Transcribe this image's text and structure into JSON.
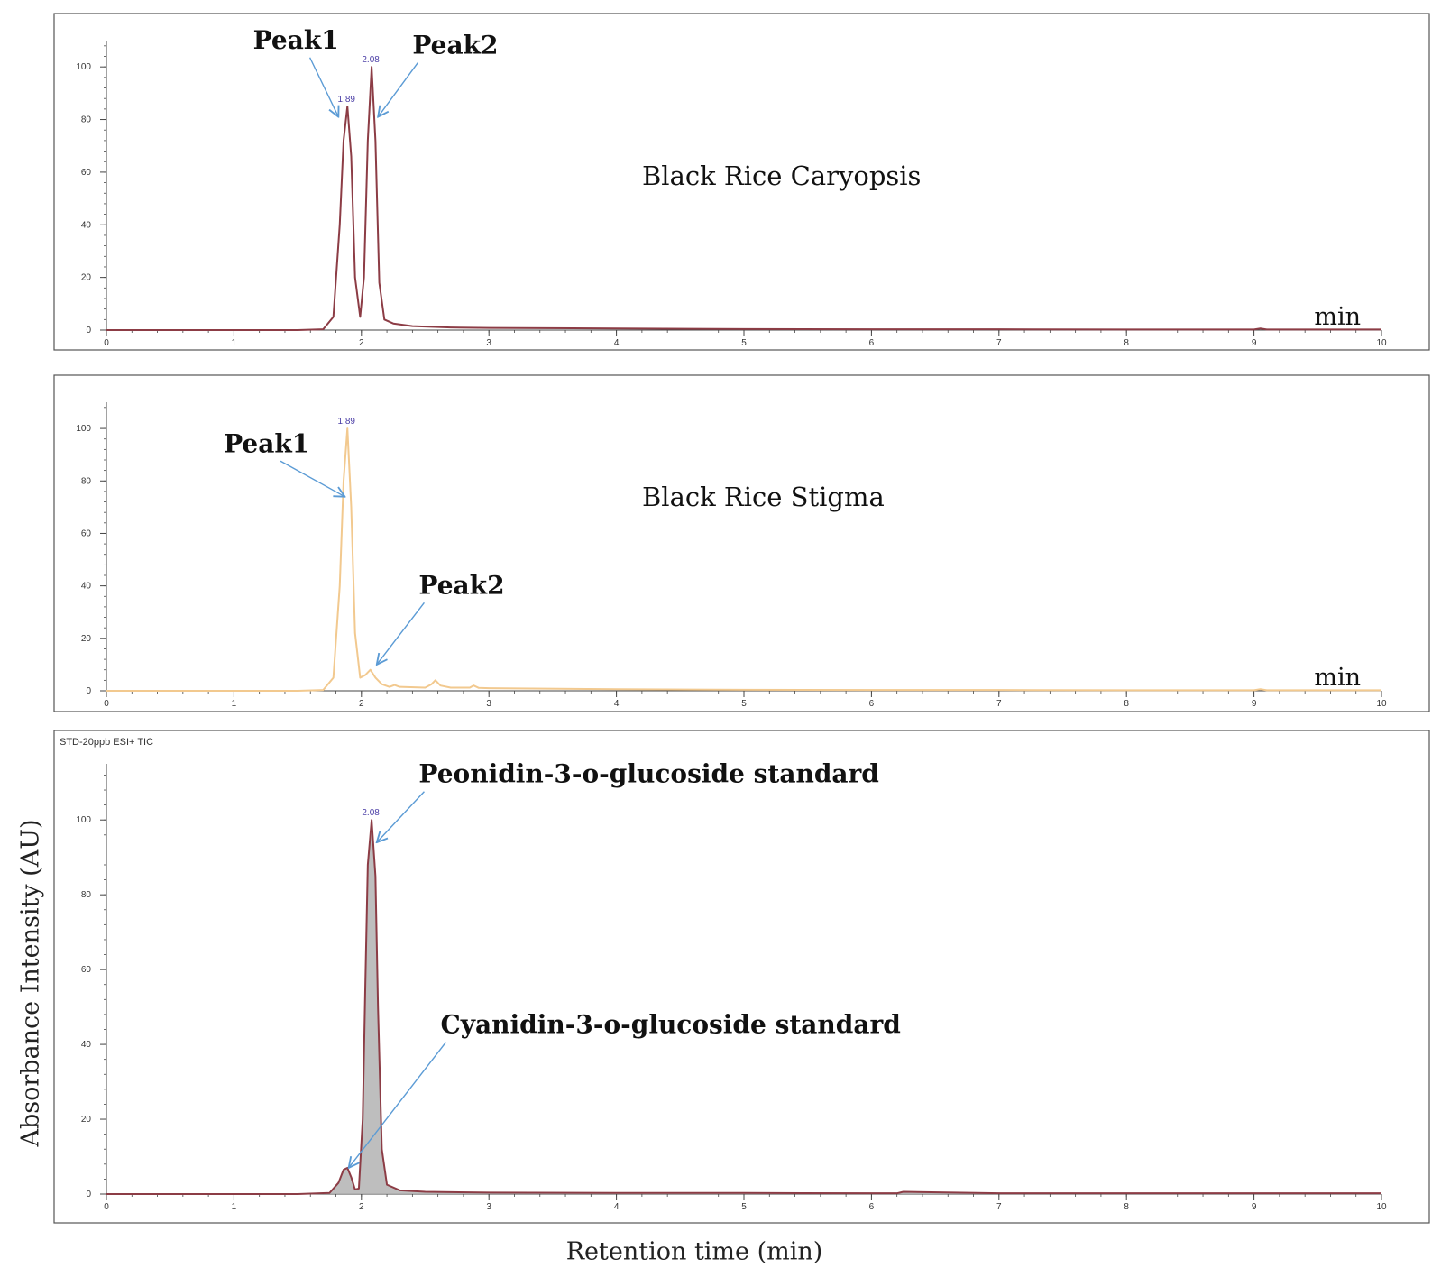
{
  "ylabel": "Absorbance Intensity (AU)",
  "xlabel": "Retention time (min)",
  "colors": {
    "arrow": "#5b9bd5",
    "peak_label": "#4b3ea6",
    "frame": "#555555",
    "axis": "#444444"
  },
  "chart_data": [
    {
      "type": "line",
      "title": "Black Rice Caryopsis",
      "header": "",
      "x_unit_label": "min",
      "xlim": [
        0,
        10
      ],
      "ylim": [
        0,
        110
      ],
      "xticks": [
        0,
        1,
        2,
        3,
        4,
        5,
        6,
        7,
        8,
        9,
        10
      ],
      "yticks": [
        0,
        20,
        40,
        60,
        80,
        100
      ],
      "line_color": "#8c3c45",
      "fill": false,
      "series": [
        {
          "x": [
            0,
            1.0,
            1.5,
            1.7,
            1.78,
            1.83,
            1.86,
            1.89,
            1.92,
            1.95,
            1.99,
            2.02,
            2.05,
            2.08,
            2.11,
            2.14,
            2.18,
            2.25,
            2.4,
            2.7,
            3.0,
            4.0,
            5.0,
            6.0,
            7.0,
            8.0,
            9.0,
            9.05,
            9.1,
            10.0
          ],
          "y": [
            0,
            0,
            0,
            0.3,
            5,
            40,
            72,
            85,
            66,
            20,
            5,
            20,
            72,
            100,
            72,
            18,
            4,
            2.5,
            1.5,
            1,
            0.8,
            0.6,
            0.4,
            0.3,
            0.3,
            0.2,
            0.2,
            0.6,
            0.2,
            0.2
          ]
        }
      ],
      "peak_labels": [
        {
          "x": 1.89,
          "y": 85,
          "text": "1.89"
        },
        {
          "x": 2.08,
          "y": 100,
          "text": "2.08"
        }
      ],
      "annotations": [
        {
          "text": "Peak1",
          "text_x": 1.15,
          "text_y": 107,
          "arrow_to_x": 1.82,
          "arrow_to_y": 81
        },
        {
          "text": "Peak2",
          "text_x": 2.4,
          "text_y": 105,
          "arrow_to_x": 2.13,
          "arrow_to_y": 81
        }
      ]
    },
    {
      "type": "line",
      "title": "Black Rice Stigma",
      "header": "",
      "x_unit_label": "min",
      "xlim": [
        0,
        10
      ],
      "ylim": [
        0,
        110
      ],
      "xticks": [
        0,
        1,
        2,
        3,
        4,
        5,
        6,
        7,
        8,
        9,
        10
      ],
      "yticks": [
        0,
        20,
        40,
        60,
        80,
        100
      ],
      "line_color": "#f2c98f",
      "fill": false,
      "series": [
        {
          "x": [
            0,
            1.0,
            1.5,
            1.7,
            1.78,
            1.83,
            1.86,
            1.89,
            1.92,
            1.95,
            1.99,
            2.03,
            2.07,
            2.11,
            2.16,
            2.22,
            2.26,
            2.3,
            2.5,
            2.55,
            2.58,
            2.62,
            2.7,
            2.85,
            2.88,
            2.92,
            3.0,
            4.0,
            5.0,
            6.0,
            7.0,
            8.0,
            9.0,
            9.05,
            9.1,
            10.0
          ],
          "y": [
            0,
            0,
            0,
            0.3,
            5,
            40,
            80,
            100,
            70,
            22,
            5,
            6,
            8,
            5,
            2.5,
            1.5,
            2.2,
            1.5,
            1.2,
            2.5,
            4,
            2,
            1.2,
            1.2,
            2,
            1.1,
            1,
            0.6,
            0.4,
            0.3,
            0.3,
            0.2,
            0.2,
            0.6,
            0.2,
            0.2
          ]
        }
      ],
      "peak_labels": [
        {
          "x": 1.89,
          "y": 100,
          "text": "1.89"
        }
      ],
      "annotations": [
        {
          "text": "Peak1",
          "text_x": 0.92,
          "text_y": 91,
          "arrow_to_x": 1.87,
          "arrow_to_y": 74
        },
        {
          "text": "Peak2",
          "text_x": 2.45,
          "text_y": 37,
          "arrow_to_x": 2.12,
          "arrow_to_y": 10
        }
      ]
    },
    {
      "type": "area",
      "title": "",
      "header": "STD-20ppb ESI+ TIC",
      "x_unit_label": "",
      "xlim": [
        0,
        10
      ],
      "ylim": [
        0,
        115
      ],
      "xticks": [
        0,
        1,
        2,
        3,
        4,
        5,
        6,
        7,
        8,
        9,
        10
      ],
      "yticks": [
        0,
        20,
        40,
        60,
        80,
        100
      ],
      "line_color": "#8c3c45",
      "fill": true,
      "fill_color": "#b3b3b3",
      "series": [
        {
          "x": [
            0,
            1.0,
            1.5,
            1.75,
            1.82,
            1.86,
            1.89,
            1.92,
            1.95,
            1.98,
            2.01,
            2.03,
            2.05,
            2.08,
            2.11,
            2.13,
            2.16,
            2.2,
            2.3,
            2.5,
            3.0,
            4.0,
            5.0,
            6.0,
            6.2,
            6.25,
            7.0,
            8.0,
            9.0,
            10.0
          ],
          "y": [
            0,
            0,
            0,
            0.3,
            3,
            6.5,
            7,
            4.5,
            1.2,
            1.5,
            20,
            55,
            88,
            100,
            85,
            50,
            12,
            2.5,
            1,
            0.6,
            0.4,
            0.3,
            0.3,
            0.2,
            0.2,
            0.6,
            0.2,
            0.2,
            0.2,
            0.2
          ]
        }
      ],
      "peak_labels": [
        {
          "x": 2.08,
          "y": 100,
          "text": "2.08"
        }
      ],
      "annotations": [
        {
          "text": "Peonidin-3-o-glucoside standard",
          "text_x": 2.45,
          "text_y": 110,
          "arrow_to_x": 2.12,
          "arrow_to_y": 94
        },
        {
          "text": "Cyanidin-3-o-glucoside standard",
          "text_x": 2.62,
          "text_y": 43,
          "arrow_to_x": 1.9,
          "arrow_to_y": 7
        }
      ]
    }
  ]
}
